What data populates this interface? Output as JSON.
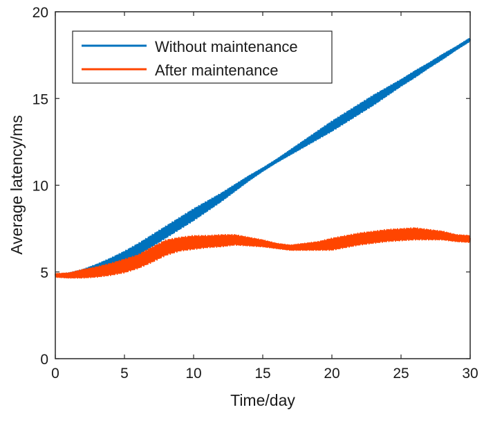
{
  "chart_data": {
    "type": "line",
    "title": "",
    "xlabel": "Time/day",
    "ylabel": "Average latency/ms",
    "xlim": [
      0,
      30
    ],
    "ylim": [
      0,
      20
    ],
    "xticks": [
      0,
      5,
      10,
      15,
      20,
      25,
      30
    ],
    "yticks": [
      0,
      5,
      10,
      15,
      20
    ],
    "grid": false,
    "legend_position": "top-left",
    "x": [
      0,
      1,
      2,
      3,
      4,
      5,
      6,
      7,
      8,
      9,
      10,
      11,
      12,
      13,
      14,
      15,
      16,
      17,
      18,
      19,
      20,
      21,
      22,
      23,
      24,
      25,
      26,
      27,
      28,
      29,
      30
    ],
    "series": [
      {
        "name": "Without maintenance",
        "color": "#0072BD",
        "values": [
          4.8,
          4.85,
          5.0,
          5.25,
          5.55,
          5.9,
          6.3,
          6.8,
          7.3,
          7.8,
          8.3,
          8.8,
          9.3,
          9.85,
          10.4,
          10.9,
          11.4,
          11.9,
          12.4,
          12.9,
          13.4,
          13.9,
          14.4,
          14.9,
          15.4,
          15.9,
          16.4,
          16.9,
          17.4,
          17.9,
          18.4
        ],
        "oscillation_amplitude": [
          0.05,
          0.1,
          0.15,
          0.2,
          0.25,
          0.3,
          0.35,
          0.35,
          0.35,
          0.35,
          0.35,
          0.3,
          0.25,
          0.2,
          0.15,
          0.1,
          0.1,
          0.15,
          0.2,
          0.25,
          0.3,
          0.3,
          0.3,
          0.3,
          0.25,
          0.2,
          0.2,
          0.15,
          0.15,
          0.1,
          0.1
        ]
      },
      {
        "name": "After maintenance",
        "color": "#FF4500",
        "values": [
          4.8,
          4.8,
          4.9,
          5.0,
          5.15,
          5.35,
          5.6,
          6.0,
          6.4,
          6.6,
          6.7,
          6.75,
          6.8,
          6.85,
          6.75,
          6.65,
          6.5,
          6.4,
          6.45,
          6.5,
          6.6,
          6.75,
          6.9,
          7.0,
          7.1,
          7.15,
          7.2,
          7.15,
          7.1,
          6.95,
          6.9
        ],
        "oscillation_amplitude": [
          0.1,
          0.15,
          0.25,
          0.3,
          0.35,
          0.4,
          0.4,
          0.45,
          0.45,
          0.4,
          0.4,
          0.35,
          0.35,
          0.3,
          0.25,
          0.2,
          0.15,
          0.15,
          0.2,
          0.25,
          0.35,
          0.35,
          0.35,
          0.35,
          0.35,
          0.35,
          0.35,
          0.3,
          0.25,
          0.2,
          0.2
        ]
      }
    ]
  }
}
